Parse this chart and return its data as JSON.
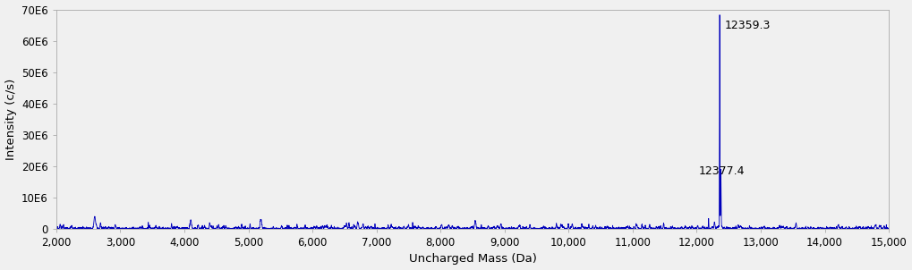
{
  "xlim": [
    2000,
    15000
  ],
  "ylim": [
    0,
    70000000.0
  ],
  "xlabel": "Uncharged Mass (Da)",
  "ylabel": "Intensity (c/s)",
  "xticks": [
    2000,
    3000,
    4000,
    5000,
    6000,
    7000,
    8000,
    9000,
    10000,
    11000,
    12000,
    13000,
    14000,
    15000
  ],
  "yticks": [
    0,
    10000000,
    20000000,
    30000000,
    40000000,
    50000000,
    60000000,
    70000000
  ],
  "ytick_labels": [
    "0",
    "10E6",
    "20E6",
    "30E6",
    "40E6",
    "50E6",
    "60E6",
    "70E6"
  ],
  "peak1_x": 12359.3,
  "peak1_y": 68000000,
  "peak1_label": "12359.3",
  "peak2_x": 12377.4,
  "peak2_y": 18500000,
  "peak2_label": "12377.4",
  "line_color": "#0000BB",
  "background_color": "#f0f0f0",
  "plot_bg_color": "#f0f0f0",
  "noise_baseline": 300000,
  "noise_seed": 7
}
